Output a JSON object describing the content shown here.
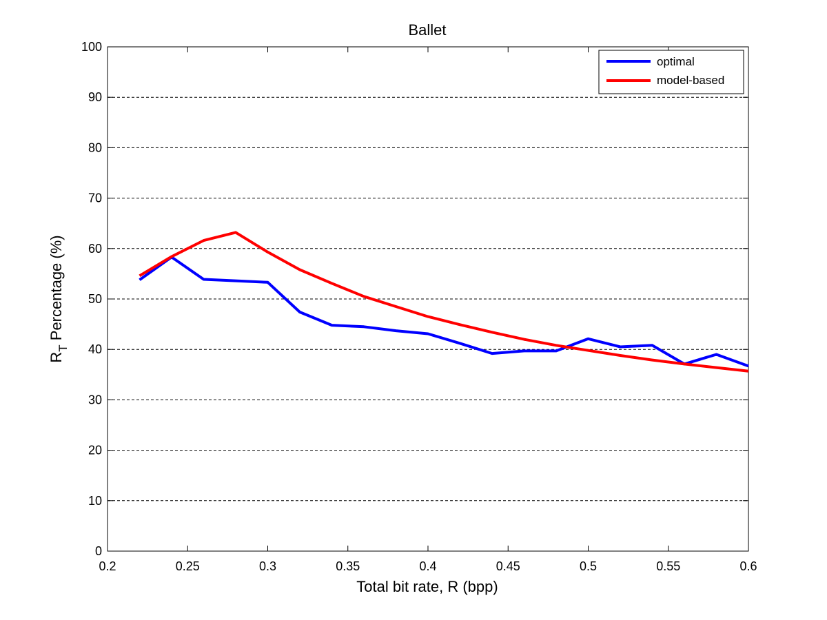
{
  "chart_data": {
    "type": "line",
    "title": "Ballet",
    "xlabel": "Total bit rate, R (bpp)",
    "ylabel_main": "R",
    "ylabel_sub": "T",
    "ylabel_rest": " Percentage (%)",
    "xlim": [
      0.2,
      0.6
    ],
    "ylim": [
      0,
      100
    ],
    "xticks": [
      "0.2",
      "0.25",
      "0.3",
      "0.35",
      "0.4",
      "0.45",
      "0.5",
      "0.55",
      "0.6"
    ],
    "yticks": [
      "0",
      "10",
      "20",
      "30",
      "40",
      "50",
      "60",
      "70",
      "80",
      "90",
      "100"
    ],
    "grid": "horizontal-dashed",
    "legend_position": "top-right",
    "series": [
      {
        "name": "optimal",
        "color": "#0000ff",
        "x": [
          0.22,
          0.24,
          0.26,
          0.28,
          0.3,
          0.32,
          0.34,
          0.36,
          0.38,
          0.4,
          0.42,
          0.44,
          0.46,
          0.48,
          0.5,
          0.52,
          0.54,
          0.56,
          0.58,
          0.6
        ],
        "y": [
          53.8,
          58.3,
          53.9,
          53.6,
          53.3,
          47.4,
          44.8,
          44.5,
          43.7,
          43.1,
          41.2,
          39.2,
          39.7,
          39.7,
          42.1,
          40.5,
          40.8,
          37.1,
          39.0,
          36.7
        ]
      },
      {
        "name": "model-based",
        "color": "#ff0000",
        "x": [
          0.22,
          0.24,
          0.26,
          0.28,
          0.3,
          0.32,
          0.34,
          0.36,
          0.38,
          0.4,
          0.42,
          0.44,
          0.46,
          0.48,
          0.5,
          0.52,
          0.54,
          0.56,
          0.58,
          0.6
        ],
        "y": [
          54.6,
          58.4,
          61.6,
          63.2,
          59.3,
          55.8,
          53.1,
          50.5,
          48.5,
          46.5,
          44.9,
          43.4,
          42.0,
          40.8,
          39.8,
          38.8,
          37.9,
          37.1,
          36.4,
          35.7
        ]
      }
    ]
  }
}
